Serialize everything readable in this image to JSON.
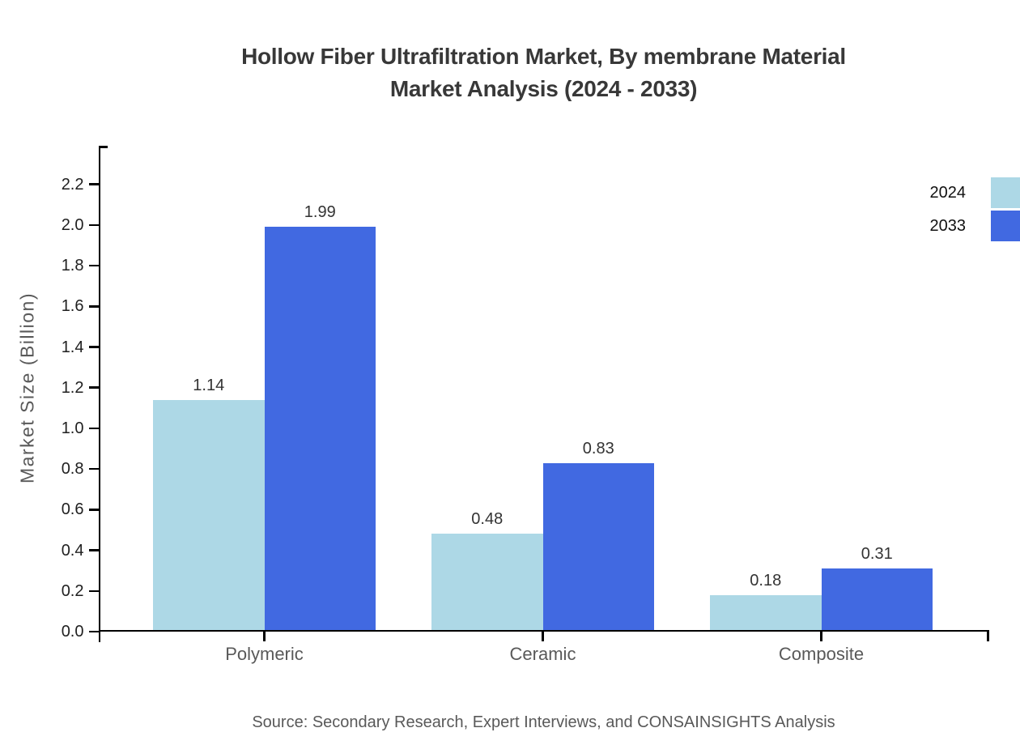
{
  "title": {
    "line1": "Hollow Fiber Ultrafiltration Market, By membrane Material",
    "line2": "Market Analysis (2024 - 2033)"
  },
  "y_axis": {
    "label": "Market Size (Billion)",
    "tick_labels": [
      "0.0",
      "0.2",
      "0.4",
      "0.6",
      "0.8",
      "1.0",
      "1.2",
      "1.4",
      "1.6",
      "1.8",
      "2.0",
      "2.2"
    ]
  },
  "legend": [
    {
      "label": "2024",
      "color": "#ADD8E6"
    },
    {
      "label": "2033",
      "color": "#4169E1"
    }
  ],
  "source": "Source: Secondary Research, Expert Interviews, and CONSAINSIGHTS Analysis",
  "colors": {
    "series_2024": "#ADD8E6",
    "series_2033": "#4169E1",
    "axis": "#000000",
    "title_text": "#383838",
    "muted_text": "#595959"
  },
  "chart_data": {
    "type": "bar",
    "title": "Hollow Fiber Ultrafiltration Market, By membrane Material Market Analysis (2024 - 2033)",
    "categories": [
      "Polymeric",
      "Ceramic",
      "Composite"
    ],
    "series": [
      {
        "name": "2024",
        "color": "#ADD8E6",
        "values": [
          1.14,
          0.48,
          0.18
        ]
      },
      {
        "name": "2033",
        "color": "#4169E1",
        "values": [
          1.99,
          0.83,
          0.31
        ]
      }
    ],
    "xlabel": "",
    "ylabel": "Market Size (Billion)",
    "ylim": [
      0,
      2.39
    ],
    "ytick_step": 0.2,
    "grid": false,
    "legend_position": "top-right",
    "value_labels_shown": true,
    "value_label_format": "0.00"
  }
}
